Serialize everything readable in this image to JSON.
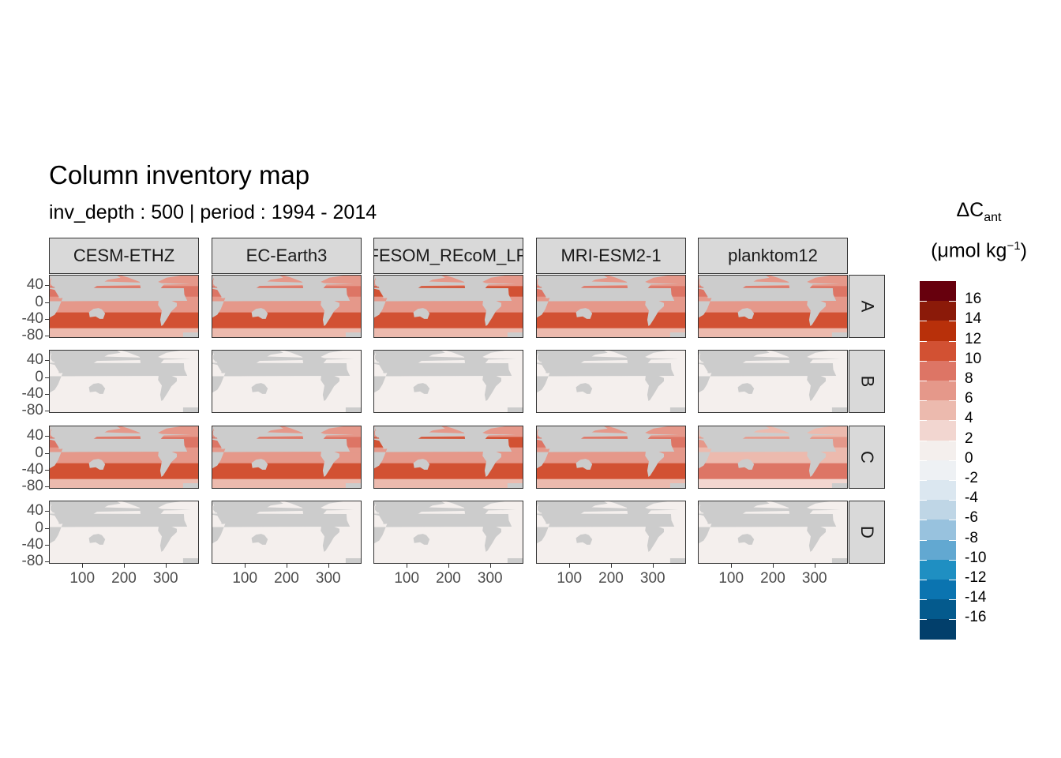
{
  "title": "Column inventory map",
  "subtitle": "inv_depth : 500 | period : 1994 - 2014",
  "legend": {
    "title_main": "ΔC",
    "title_sub": "ant",
    "unit_pre": "(μmol kg",
    "unit_sup": "−1",
    "unit_post": ")",
    "breaks": [
      {
        "label": "16",
        "color": "#67000d"
      },
      {
        "label": "14",
        "color": "#8b1a09"
      },
      {
        "label": "12",
        "color": "#b8300a"
      },
      {
        "label": "10",
        "color": "#d25133"
      },
      {
        "label": "8",
        "color": "#dd7565"
      },
      {
        "label": "6",
        "color": "#e5988a"
      },
      {
        "label": "4",
        "color": "#ecbaae"
      },
      {
        "label": "2",
        "color": "#f2d6d0"
      },
      {
        "label": "0",
        "color": "#f4efed"
      },
      {
        "label": "-2",
        "color": "#eef1f4"
      },
      {
        "label": "-4",
        "color": "#dbe7f0"
      },
      {
        "label": "-6",
        "color": "#bfd6e6"
      },
      {
        "label": "-8",
        "color": "#98c2de"
      },
      {
        "label": "-10",
        "color": "#62a8d1"
      },
      {
        "label": "-12",
        "color": "#1f8fc2"
      },
      {
        "label": "-14",
        "color": "#0b74b0"
      },
      {
        "label": "-16",
        "color": "#045a8d"
      },
      {
        "label": "",
        "color": "#023f6b"
      }
    ]
  },
  "columns": [
    "CESM-ETHZ",
    "EC-Earth3",
    "FESOM_REcoM_LR",
    "MRI-ESM2-1",
    "planktom12"
  ],
  "rows": [
    "A",
    "B",
    "C",
    "D"
  ],
  "x_ticks": [
    "100",
    "200",
    "300"
  ],
  "y_ticks": [
    "40",
    "0",
    "-40",
    "-80"
  ],
  "colors": {
    "land": "#cccccc",
    "strip": "#d9d9d9",
    "border": "#333333"
  },
  "chart_data": {
    "type": "heatmap",
    "title": "Column inventory map",
    "subtitle": "inv_depth : 500 | period : 1994 - 2014",
    "facet_columns": [
      "CESM-ETHZ",
      "EC-Earth3",
      "FESOM_REcoM_LR",
      "MRI-ESM2-1",
      "planktom12"
    ],
    "facet_rows": [
      "A",
      "B",
      "C",
      "D"
    ],
    "x_ticks": [
      100,
      200,
      300
    ],
    "xlim": [
      20,
      380
    ],
    "y_ticks": [
      40,
      0,
      -40,
      -80
    ],
    "ylim": [
      -85,
      65
    ],
    "legend_title": "ΔCant (μmol kg−1)",
    "legend_breaks": [
      16,
      14,
      12,
      10,
      8,
      6,
      4,
      2,
      0,
      -2,
      -4,
      -6,
      -8,
      -10,
      -12,
      -14,
      -16
    ],
    "approx_panel_mean": {
      "A": [
        6,
        6,
        7,
        6,
        6
      ],
      "B": [
        0,
        0,
        0,
        0,
        0
      ],
      "C": [
        6,
        6,
        7,
        6,
        4
      ],
      "D": [
        0,
        0,
        0,
        0,
        0
      ]
    },
    "legend_position": "right"
  }
}
